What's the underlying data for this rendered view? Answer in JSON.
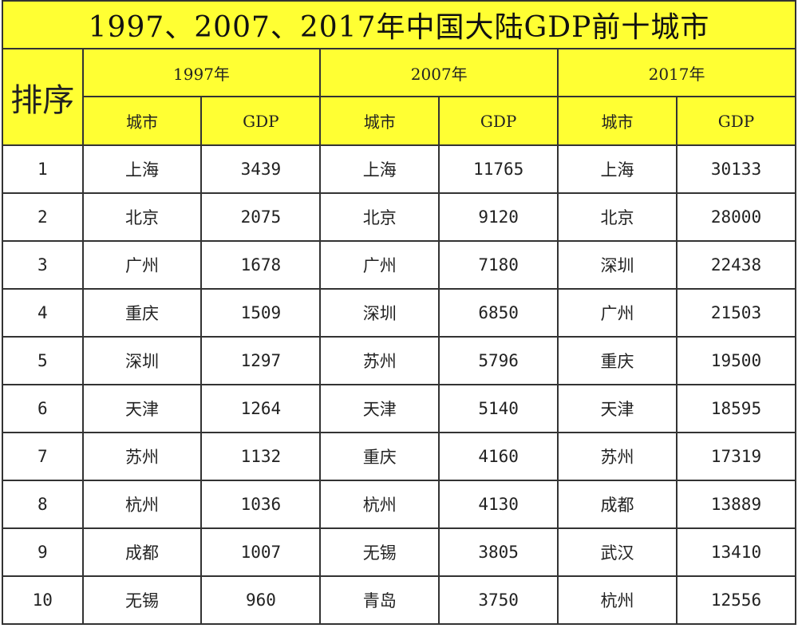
{
  "title": "1997、2007、2017年中国大陆GDP前十城市",
  "rank_header": "排序",
  "years": [
    "1997年",
    "2007年",
    "2017年"
  ],
  "sub_headers": {
    "city": "城市",
    "gdp": "GDP"
  },
  "colors": {
    "header_bg": "#ffff33",
    "border": "#333333"
  },
  "rows": [
    {
      "rank": "1",
      "c1997": "上海",
      "g1997": "3439",
      "c2007": "上海",
      "g2007": "11765",
      "c2017": "上海",
      "g2017": "30133"
    },
    {
      "rank": "2",
      "c1997": "北京",
      "g1997": "2075",
      "c2007": "北京",
      "g2007": "9120",
      "c2017": "北京",
      "g2017": "28000"
    },
    {
      "rank": "3",
      "c1997": "广州",
      "g1997": "1678",
      "c2007": "广州",
      "g2007": "7180",
      "c2017": "深圳",
      "g2017": "22438"
    },
    {
      "rank": "4",
      "c1997": "重庆",
      "g1997": "1509",
      "c2007": "深圳",
      "g2007": "6850",
      "c2017": "广州",
      "g2017": "21503"
    },
    {
      "rank": "5",
      "c1997": "深圳",
      "g1997": "1297",
      "c2007": "苏州",
      "g2007": "5796",
      "c2017": "重庆",
      "g2017": "19500"
    },
    {
      "rank": "6",
      "c1997": "天津",
      "g1997": "1264",
      "c2007": "天津",
      "g2007": "5140",
      "c2017": "天津",
      "g2017": "18595"
    },
    {
      "rank": "7",
      "c1997": "苏州",
      "g1997": "1132",
      "c2007": "重庆",
      "g2007": "4160",
      "c2017": "苏州",
      "g2017": "17319"
    },
    {
      "rank": "8",
      "c1997": "杭州",
      "g1997": "1036",
      "c2007": "杭州",
      "g2007": "4130",
      "c2017": "成都",
      "g2017": "13889"
    },
    {
      "rank": "9",
      "c1997": "成都",
      "g1997": "1007",
      "c2007": "无锡",
      "g2007": "3805",
      "c2017": "武汉",
      "g2017": "13410"
    },
    {
      "rank": "10",
      "c1997": "无锡",
      "g1997": "960",
      "c2007": "青岛",
      "g2007": "3750",
      "c2017": "杭州",
      "g2017": "12556"
    }
  ]
}
